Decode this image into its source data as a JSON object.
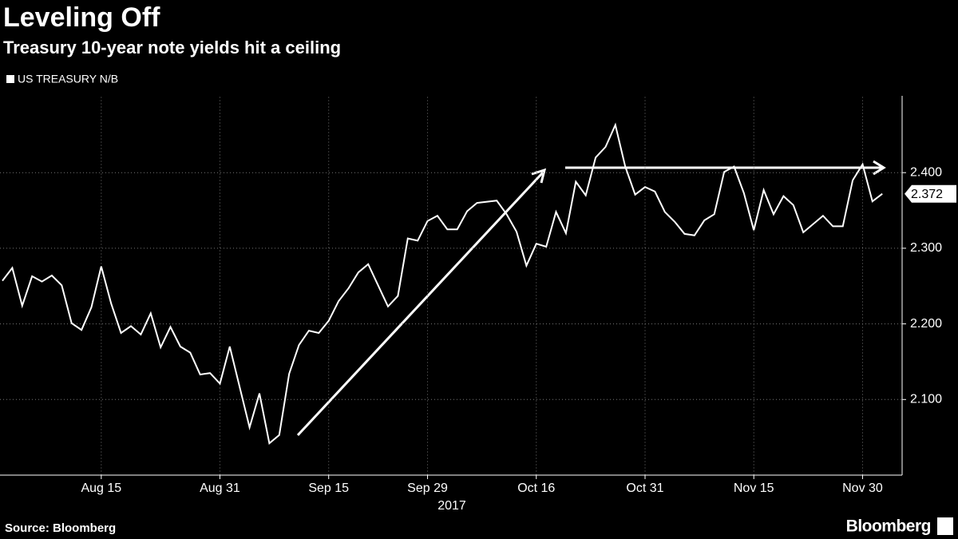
{
  "chart_data": {
    "type": "line",
    "title": "Leveling Off",
    "subtitle": "Treasury 10-year note yields hit a ceiling",
    "xlabel": "2017",
    "source": "Source: Bloomberg",
    "brand": "Bloomberg",
    "grid": true,
    "xlim": [
      "2017-08-01",
      "2017-12-06"
    ],
    "ylim": [
      2.0,
      2.5
    ],
    "yticks": [
      {
        "value": 2.1,
        "label": "2.100"
      },
      {
        "value": 2.2,
        "label": "2.200"
      },
      {
        "value": 2.3,
        "label": "2.300"
      },
      {
        "value": 2.4,
        "label": "2.400"
      }
    ],
    "xticks": [
      {
        "value": "2017-08-15",
        "label": "Aug 15"
      },
      {
        "value": "2017-08-31",
        "label": "Aug 31"
      },
      {
        "value": "2017-09-15",
        "label": "Sep 15"
      },
      {
        "value": "2017-09-29",
        "label": "Sep 29"
      },
      {
        "value": "2017-10-16",
        "label": "Oct 16"
      },
      {
        "value": "2017-10-31",
        "label": "Oct 31"
      },
      {
        "value": "2017-11-15",
        "label": "Nov 15"
      },
      {
        "value": "2017-11-30",
        "label": "Nov 30"
      }
    ],
    "x": [
      "2017-08-01",
      "2017-08-02",
      "2017-08-03",
      "2017-08-04",
      "2017-08-07",
      "2017-08-08",
      "2017-08-09",
      "2017-08-10",
      "2017-08-11",
      "2017-08-14",
      "2017-08-15",
      "2017-08-16",
      "2017-08-17",
      "2017-08-18",
      "2017-08-21",
      "2017-08-22",
      "2017-08-23",
      "2017-08-24",
      "2017-08-25",
      "2017-08-28",
      "2017-08-29",
      "2017-08-30",
      "2017-08-31",
      "2017-09-01",
      "2017-09-05",
      "2017-09-06",
      "2017-09-07",
      "2017-09-08",
      "2017-09-11",
      "2017-09-12",
      "2017-09-13",
      "2017-09-14",
      "2017-09-15",
      "2017-09-18",
      "2017-09-19",
      "2017-09-20",
      "2017-09-21",
      "2017-09-22",
      "2017-09-25",
      "2017-09-26",
      "2017-09-27",
      "2017-09-28",
      "2017-09-29",
      "2017-10-02",
      "2017-10-03",
      "2017-10-04",
      "2017-10-05",
      "2017-10-06",
      "2017-10-10",
      "2017-10-11",
      "2017-10-12",
      "2017-10-13",
      "2017-10-16",
      "2017-10-17",
      "2017-10-18",
      "2017-10-19",
      "2017-10-20",
      "2017-10-23",
      "2017-10-24",
      "2017-10-25",
      "2017-10-26",
      "2017-10-27",
      "2017-10-30",
      "2017-10-31",
      "2017-11-01",
      "2017-11-02",
      "2017-11-03",
      "2017-11-06",
      "2017-11-07",
      "2017-11-08",
      "2017-11-09",
      "2017-11-10",
      "2017-11-13",
      "2017-11-14",
      "2017-11-15",
      "2017-11-16",
      "2017-11-17",
      "2017-11-20",
      "2017-11-21",
      "2017-11-22",
      "2017-11-24",
      "2017-11-27",
      "2017-11-28",
      "2017-11-29",
      "2017-11-30",
      "2017-12-01",
      "2017-12-04"
    ],
    "series": [
      {
        "name": "US TREASURY N/B",
        "color": "#ffffff",
        "values": [
          2.257,
          2.274,
          2.224,
          2.263,
          2.256,
          2.264,
          2.251,
          2.201,
          2.192,
          2.222,
          2.276,
          2.227,
          2.188,
          2.197,
          2.186,
          2.214,
          2.169,
          2.196,
          2.17,
          2.162,
          2.133,
          2.135,
          2.121,
          2.17,
          2.063,
          2.108,
          2.042,
          2.053,
          2.134,
          2.172,
          2.191,
          2.188,
          2.204,
          2.23,
          2.247,
          2.268,
          2.279,
          2.251,
          2.223,
          2.237,
          2.313,
          2.31,
          2.336,
          2.343,
          2.325,
          2.325,
          2.349,
          2.36,
          2.363,
          2.345,
          2.322,
          2.277,
          2.306,
          2.302,
          2.348,
          2.32,
          2.388,
          2.37,
          2.42,
          2.434,
          2.463,
          2.408,
          2.371,
          2.381,
          2.375,
          2.348,
          2.335,
          2.319,
          2.317,
          2.337,
          2.345,
          2.401,
          2.408,
          2.373,
          2.324,
          2.377,
          2.345,
          2.369,
          2.357,
          2.321,
          2.343,
          2.329,
          2.329,
          2.39,
          2.411,
          2.362,
          2.372
        ]
      }
    ]
  }
}
